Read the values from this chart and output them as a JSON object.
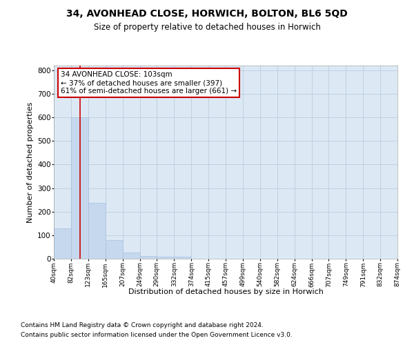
{
  "title1": "34, AVONHEAD CLOSE, HORWICH, BOLTON, BL6 5QD",
  "title2": "Size of property relative to detached houses in Horwich",
  "xlabel": "Distribution of detached houses by size in Horwich",
  "ylabel": "Number of detached properties",
  "footer1": "Contains HM Land Registry data © Crown copyright and database right 2024.",
  "footer2": "Contains public sector information licensed under the Open Government Licence v3.0.",
  "bin_edges": [
    40,
    82,
    123,
    165,
    207,
    249,
    290,
    332,
    374,
    415,
    457,
    499,
    540,
    582,
    624,
    666,
    707,
    749,
    791,
    832,
    874
  ],
  "bar_heights": [
    130,
    600,
    238,
    80,
    25,
    12,
    8,
    10,
    0,
    0,
    0,
    0,
    0,
    0,
    0,
    0,
    0,
    0,
    0,
    0
  ],
  "bar_color": "#c5d8ee",
  "bar_edge_color": "#a8c0dc",
  "grid_color": "#c0cfe0",
  "property_size": 103,
  "vline_color": "#cc0000",
  "annotation_line1": "34 AVONHEAD CLOSE: 103sqm",
  "annotation_line2": "← 37% of detached houses are smaller (397)",
  "annotation_line3": "61% of semi-detached houses are larger (661) →",
  "annotation_box_color": "#ffffff",
  "annotation_border_color": "#cc0000",
  "tick_labels": [
    "40sqm",
    "82sqm",
    "123sqm",
    "165sqm",
    "207sqm",
    "249sqm",
    "290sqm",
    "332sqm",
    "374sqm",
    "415sqm",
    "457sqm",
    "499sqm",
    "540sqm",
    "582sqm",
    "624sqm",
    "666sqm",
    "707sqm",
    "749sqm",
    "791sqm",
    "832sqm",
    "874sqm"
  ],
  "ylim": [
    0,
    820
  ],
  "yticks": [
    0,
    100,
    200,
    300,
    400,
    500,
    600,
    700,
    800
  ],
  "bg_color": "#dce9f5",
  "fig_bg_color": "#ffffff"
}
